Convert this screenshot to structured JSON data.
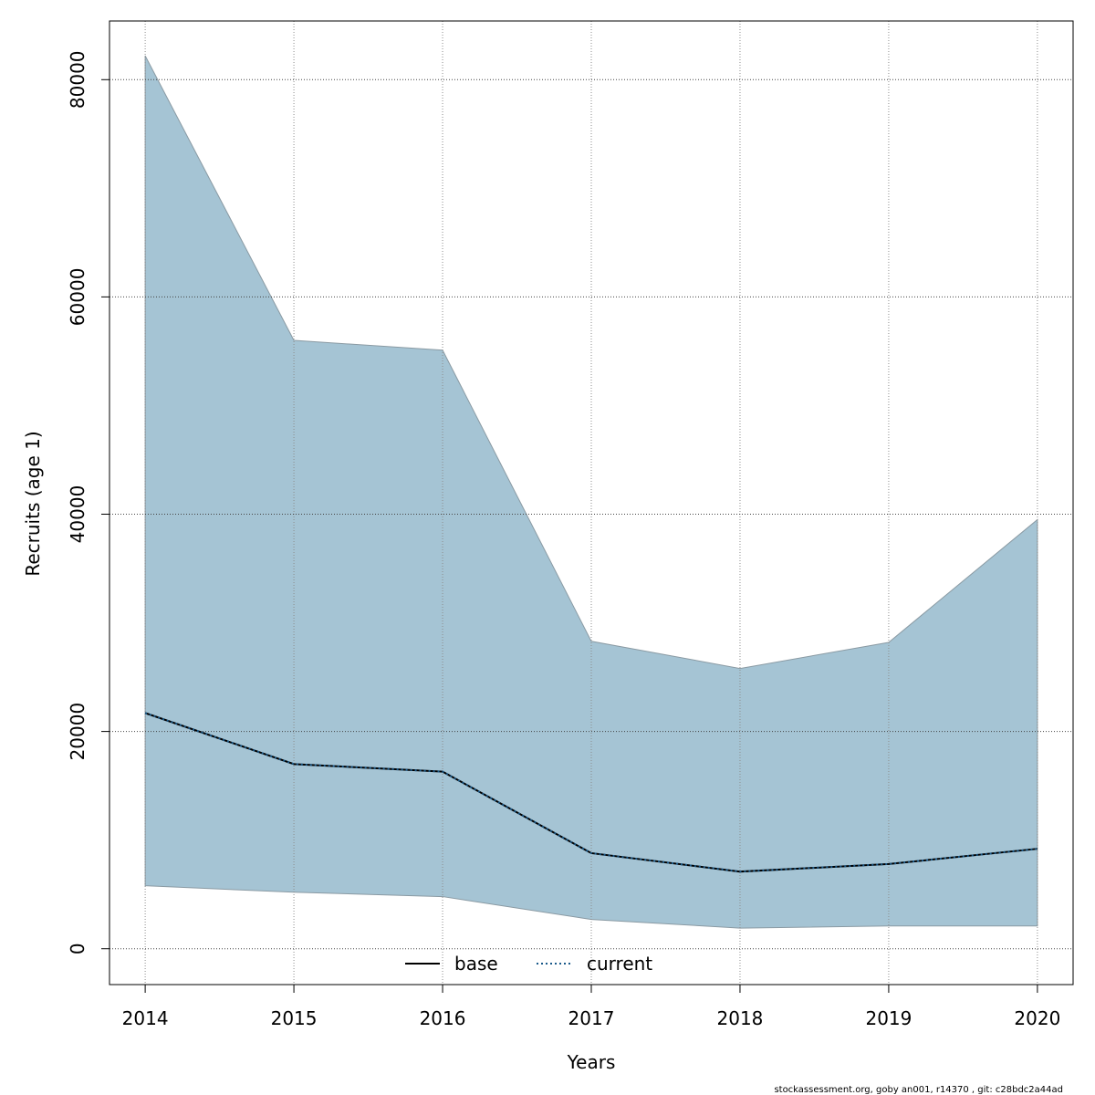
{
  "chart_data": {
    "type": "area",
    "xlabel": "Years",
    "ylabel": "Recruits (age 1)",
    "x": [
      2014,
      2015,
      2016,
      2017,
      2018,
      2019,
      2020
    ],
    "xlim": [
      2013.76,
      2020.24
    ],
    "ylim": [
      -3300,
      85400
    ],
    "x_ticks": [
      2014,
      2015,
      2016,
      2017,
      2018,
      2019,
      2020
    ],
    "y_ticks": [
      0,
      20000,
      40000,
      60000,
      80000
    ],
    "grid": true,
    "band": {
      "lower": [
        5800,
        5200,
        4800,
        2700,
        1900,
        2100,
        2100
      ],
      "upper": [
        82200,
        56000,
        55100,
        28300,
        25800,
        28200,
        39500
      ],
      "color": "#a5c4d4",
      "edge_color": "#8a9aa3"
    },
    "series": [
      {
        "name": "base",
        "values": [
          21700,
          17000,
          16300,
          8800,
          7100,
          7800,
          9200
        ],
        "color": "#000000",
        "style": "solid"
      },
      {
        "name": "current",
        "values": [
          21700,
          17000,
          16300,
          8800,
          7100,
          7800,
          9200
        ],
        "color": "#1a5a8a",
        "style": "dotted"
      }
    ],
    "legend": {
      "position": "bottom-center",
      "entries": [
        "base",
        "current"
      ]
    }
  },
  "footer": {
    "text": "stockassessment.org, goby  an001, r14370 , git: c28bdc2a44ad"
  }
}
